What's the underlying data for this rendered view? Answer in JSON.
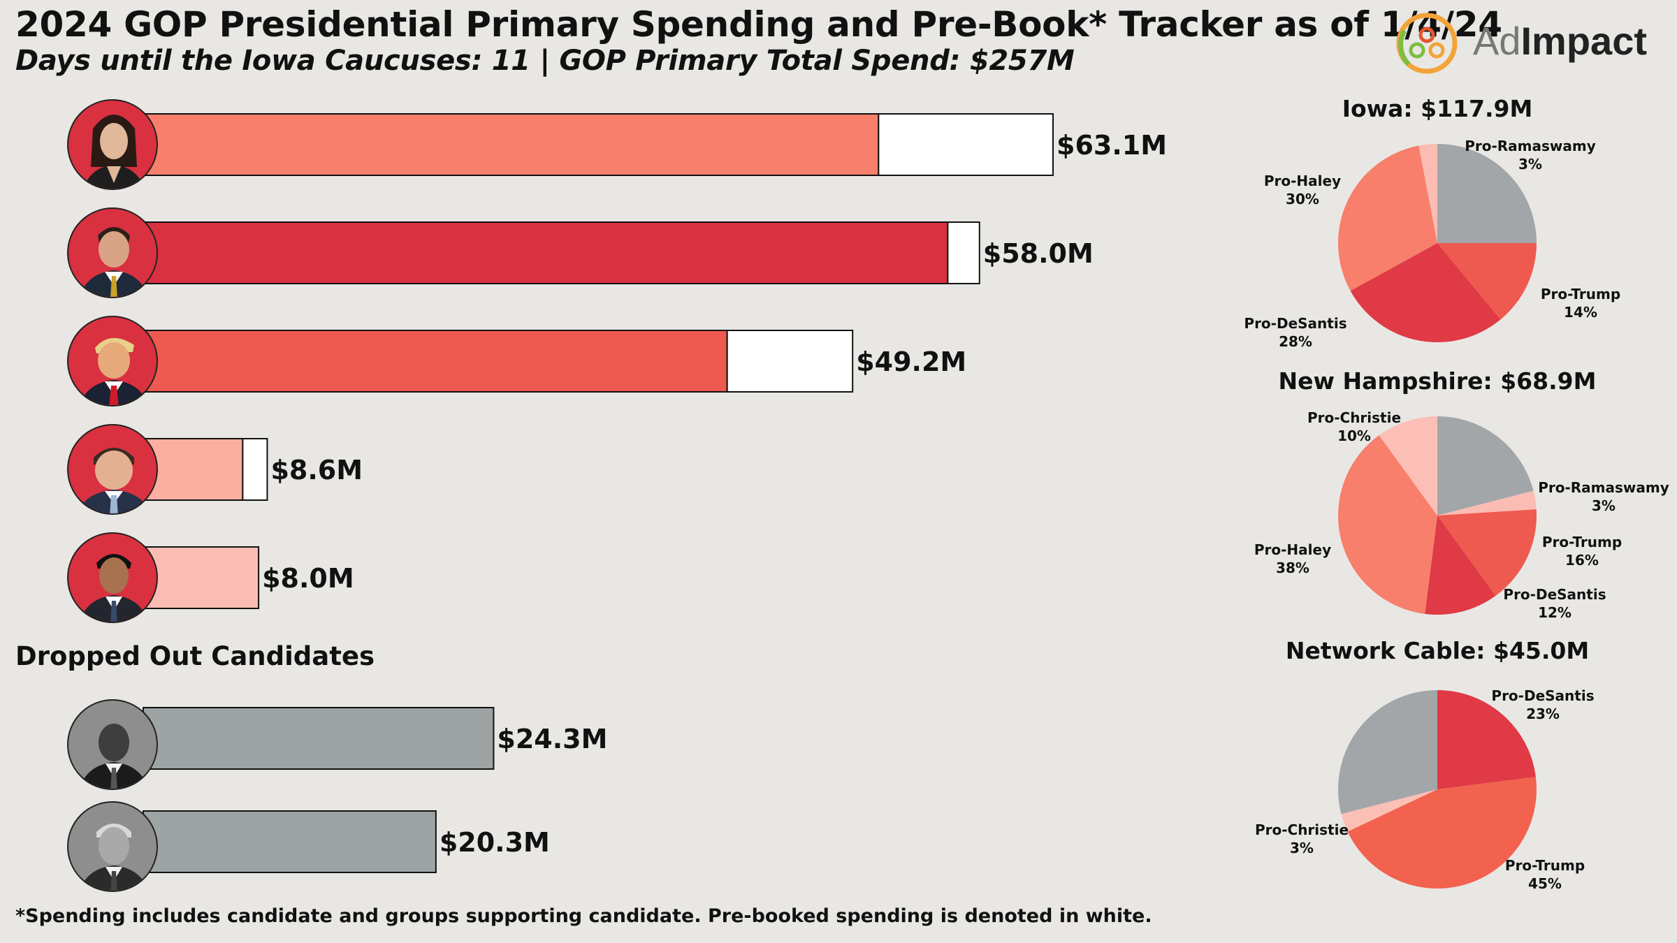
{
  "header": {
    "title": "2024 GOP Presidential Primary Spending and Pre-Book* Tracker as of 1/4/24",
    "subtitle": "Days until the Iowa Caucuses: 11 | GOP Primary Total Spend: $257M"
  },
  "logo": {
    "text_ad": "Ad",
    "text_impact": "Impact"
  },
  "dropped_heading": "Dropped Out Candidates",
  "footnote": "*Spending includes candidate and groups supporting candidate. Pre-booked spending is denoted in white.",
  "colors": {
    "background": "#e9e7e4",
    "prebook": "#ffffff",
    "haley": "#f77f6b",
    "desantis": "#d93140",
    "trump": "#ee5a4f",
    "christie": "#fcaea1",
    "ramaswamy": "#fbbcb3",
    "dropped": "#9ea3a3",
    "other_gray": "#a2a6a8"
  },
  "chart_data": [
    {
      "type": "bar",
      "orientation": "horizontal",
      "stacked": true,
      "title": "",
      "series": [
        {
          "name": "",
          "values": [
            51.0,
            55.8,
            40.5,
            6.9,
            8.0
          ]
        },
        {
          "name": "",
          "values": [
            12.1,
            2.2,
            8.7,
            1.7,
            0.0
          ]
        }
      ],
      "totals": [
        63.1,
        58.0,
        49.2,
        8.6,
        8.0
      ],
      "labels": [
        "$63.1M",
        "$58.0M",
        "$49.2M",
        "$8.6M",
        "$8.0M"
      ],
      "bar_colors": [
        "#f77f6b",
        "#d93140",
        "#ee5a4f",
        "#fcaea1",
        "#fbbcb3"
      ],
      "xlim": [
        0,
        63.1
      ]
    },
    {
      "type": "bar",
      "orientation": "horizontal",
      "title": "Dropped Out Candidates",
      "values": [
        24.3,
        20.3
      ],
      "labels": [
        "$24.3M",
        "$20.3M"
      ],
      "bar_colors": [
        "#9ea3a3",
        "#9ea3a3"
      ],
      "xlim": [
        0,
        63.1
      ]
    },
    {
      "type": "pie",
      "title": "Iowa: $117.9M",
      "slices": [
        {
          "label": "",
          "pct": 25,
          "color": "#a2a6a8"
        },
        {
          "label": "Pro-Trump",
          "pct": 14,
          "color": "#ee5a4f"
        },
        {
          "label": "Pro-DeSantis",
          "pct": 28,
          "color": "#df3a45"
        },
        {
          "label": "Pro-Haley",
          "pct": 30,
          "color": "#f77f6b"
        },
        {
          "label": "Pro-Ramaswamy",
          "pct": 3,
          "color": "#fbbcb3"
        }
      ],
      "slice_labels": [
        "Pro-Ramaswamy\n3%",
        "Pro-Haley\n30%",
        "Pro-Trump\n14%",
        "Pro-DeSantis\n28%"
      ]
    },
    {
      "type": "pie",
      "title": "New Hampshire: $68.9M",
      "slices": [
        {
          "label": "",
          "pct": 21,
          "color": "#a2a6a8"
        },
        {
          "label": "Pro-Ramaswamy",
          "pct": 3,
          "color": "#fbbcb3"
        },
        {
          "label": "Pro-Trump",
          "pct": 16,
          "color": "#ee5a4f"
        },
        {
          "label": "Pro-DeSantis",
          "pct": 12,
          "color": "#df3a45"
        },
        {
          "label": "Pro-Haley",
          "pct": 38,
          "color": "#f77f6b"
        },
        {
          "label": "Pro-Christie",
          "pct": 10,
          "color": "#fcbfb5"
        }
      ],
      "slice_labels": [
        "Pro-Christie\n10%",
        "Pro-Ramaswamy\n3%",
        "Pro-Haley\n38%",
        "Pro-Trump\n16%",
        "Pro-DeSantis\n12%"
      ]
    },
    {
      "type": "pie",
      "title": "Network Cable: $45.0M",
      "slices": [
        {
          "label": "Pro-DeSantis",
          "pct": 23,
          "color": "#df3a45"
        },
        {
          "label": "Pro-Trump",
          "pct": 45,
          "color": "#f2624f"
        },
        {
          "label": "Pro-Christie",
          "pct": 3,
          "color": "#fcbfb5"
        },
        {
          "label": "",
          "pct": 29,
          "color": "#a2a6a8"
        }
      ],
      "slice_labels": [
        "Pro-DeSantis\n23%",
        "Pro-Christie\n3%",
        "Pro-Trump\n45%"
      ]
    }
  ]
}
